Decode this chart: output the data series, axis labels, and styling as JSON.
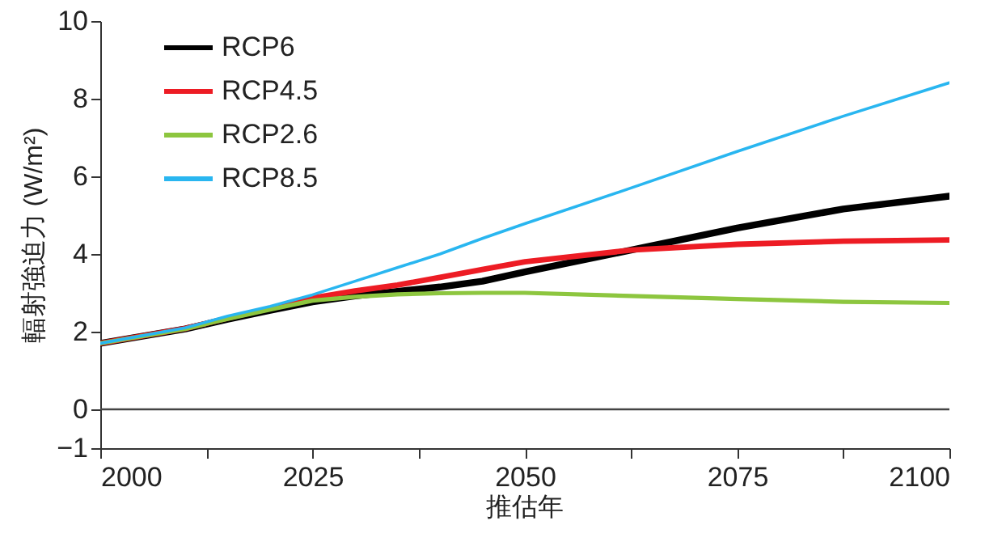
{
  "chart_data": {
    "type": "line",
    "xlabel": "推估年",
    "ylabel": "輻射強迫力 (W/m²)",
    "x": [
      2000,
      2010,
      2015,
      2020,
      2025,
      2030,
      2035,
      2040,
      2045,
      2050,
      2062.5,
      2075,
      2087.5,
      2100
    ],
    "series": [
      {
        "name": "RCP6",
        "color": "#000000",
        "values": [
          1.7,
          2.07,
          2.32,
          2.55,
          2.77,
          2.92,
          3.04,
          3.15,
          3.3,
          3.54,
          4.1,
          4.67,
          5.16,
          5.49
        ]
      },
      {
        "name": "RCP4.5",
        "color": "#ed1c24",
        "values": [
          1.7,
          2.08,
          2.35,
          2.6,
          2.87,
          3.05,
          3.2,
          3.4,
          3.6,
          3.8,
          4.1,
          4.25,
          4.33,
          4.36
        ]
      },
      {
        "name": "RCP2.6",
        "color": "#8dc63f",
        "values": [
          1.7,
          2.07,
          2.33,
          2.57,
          2.8,
          2.9,
          2.96,
          2.99,
          3.0,
          3.0,
          2.92,
          2.84,
          2.77,
          2.74
        ]
      },
      {
        "name": "RCP8.5",
        "color": "#29b6f0",
        "values": [
          1.7,
          2.1,
          2.4,
          2.65,
          2.95,
          3.3,
          3.65,
          4.0,
          4.4,
          4.78,
          5.7,
          6.64,
          7.55,
          8.41
        ]
      }
    ],
    "xlim": [
      2000,
      2100
    ],
    "xticks": [
      2000,
      {
        "value": 2012.5,
        "label": null
      },
      2025,
      {
        "value": 2037.5,
        "label": null
      },
      2050,
      {
        "value": 2062.5,
        "label": null
      },
      2075,
      {
        "value": 2087.5,
        "label": null
      },
      2100
    ],
    "ylim": [
      -1,
      10
    ],
    "yticks": [
      {
        "value": -1,
        "label": "−1"
      },
      0,
      2,
      4,
      6,
      8,
      10
    ],
    "ref_lines": [
      {
        "axis": "y",
        "value": 0,
        "color": "#444444"
      }
    ],
    "legend": "top left",
    "grid": false,
    "line_style": "solid",
    "marker": "none"
  }
}
